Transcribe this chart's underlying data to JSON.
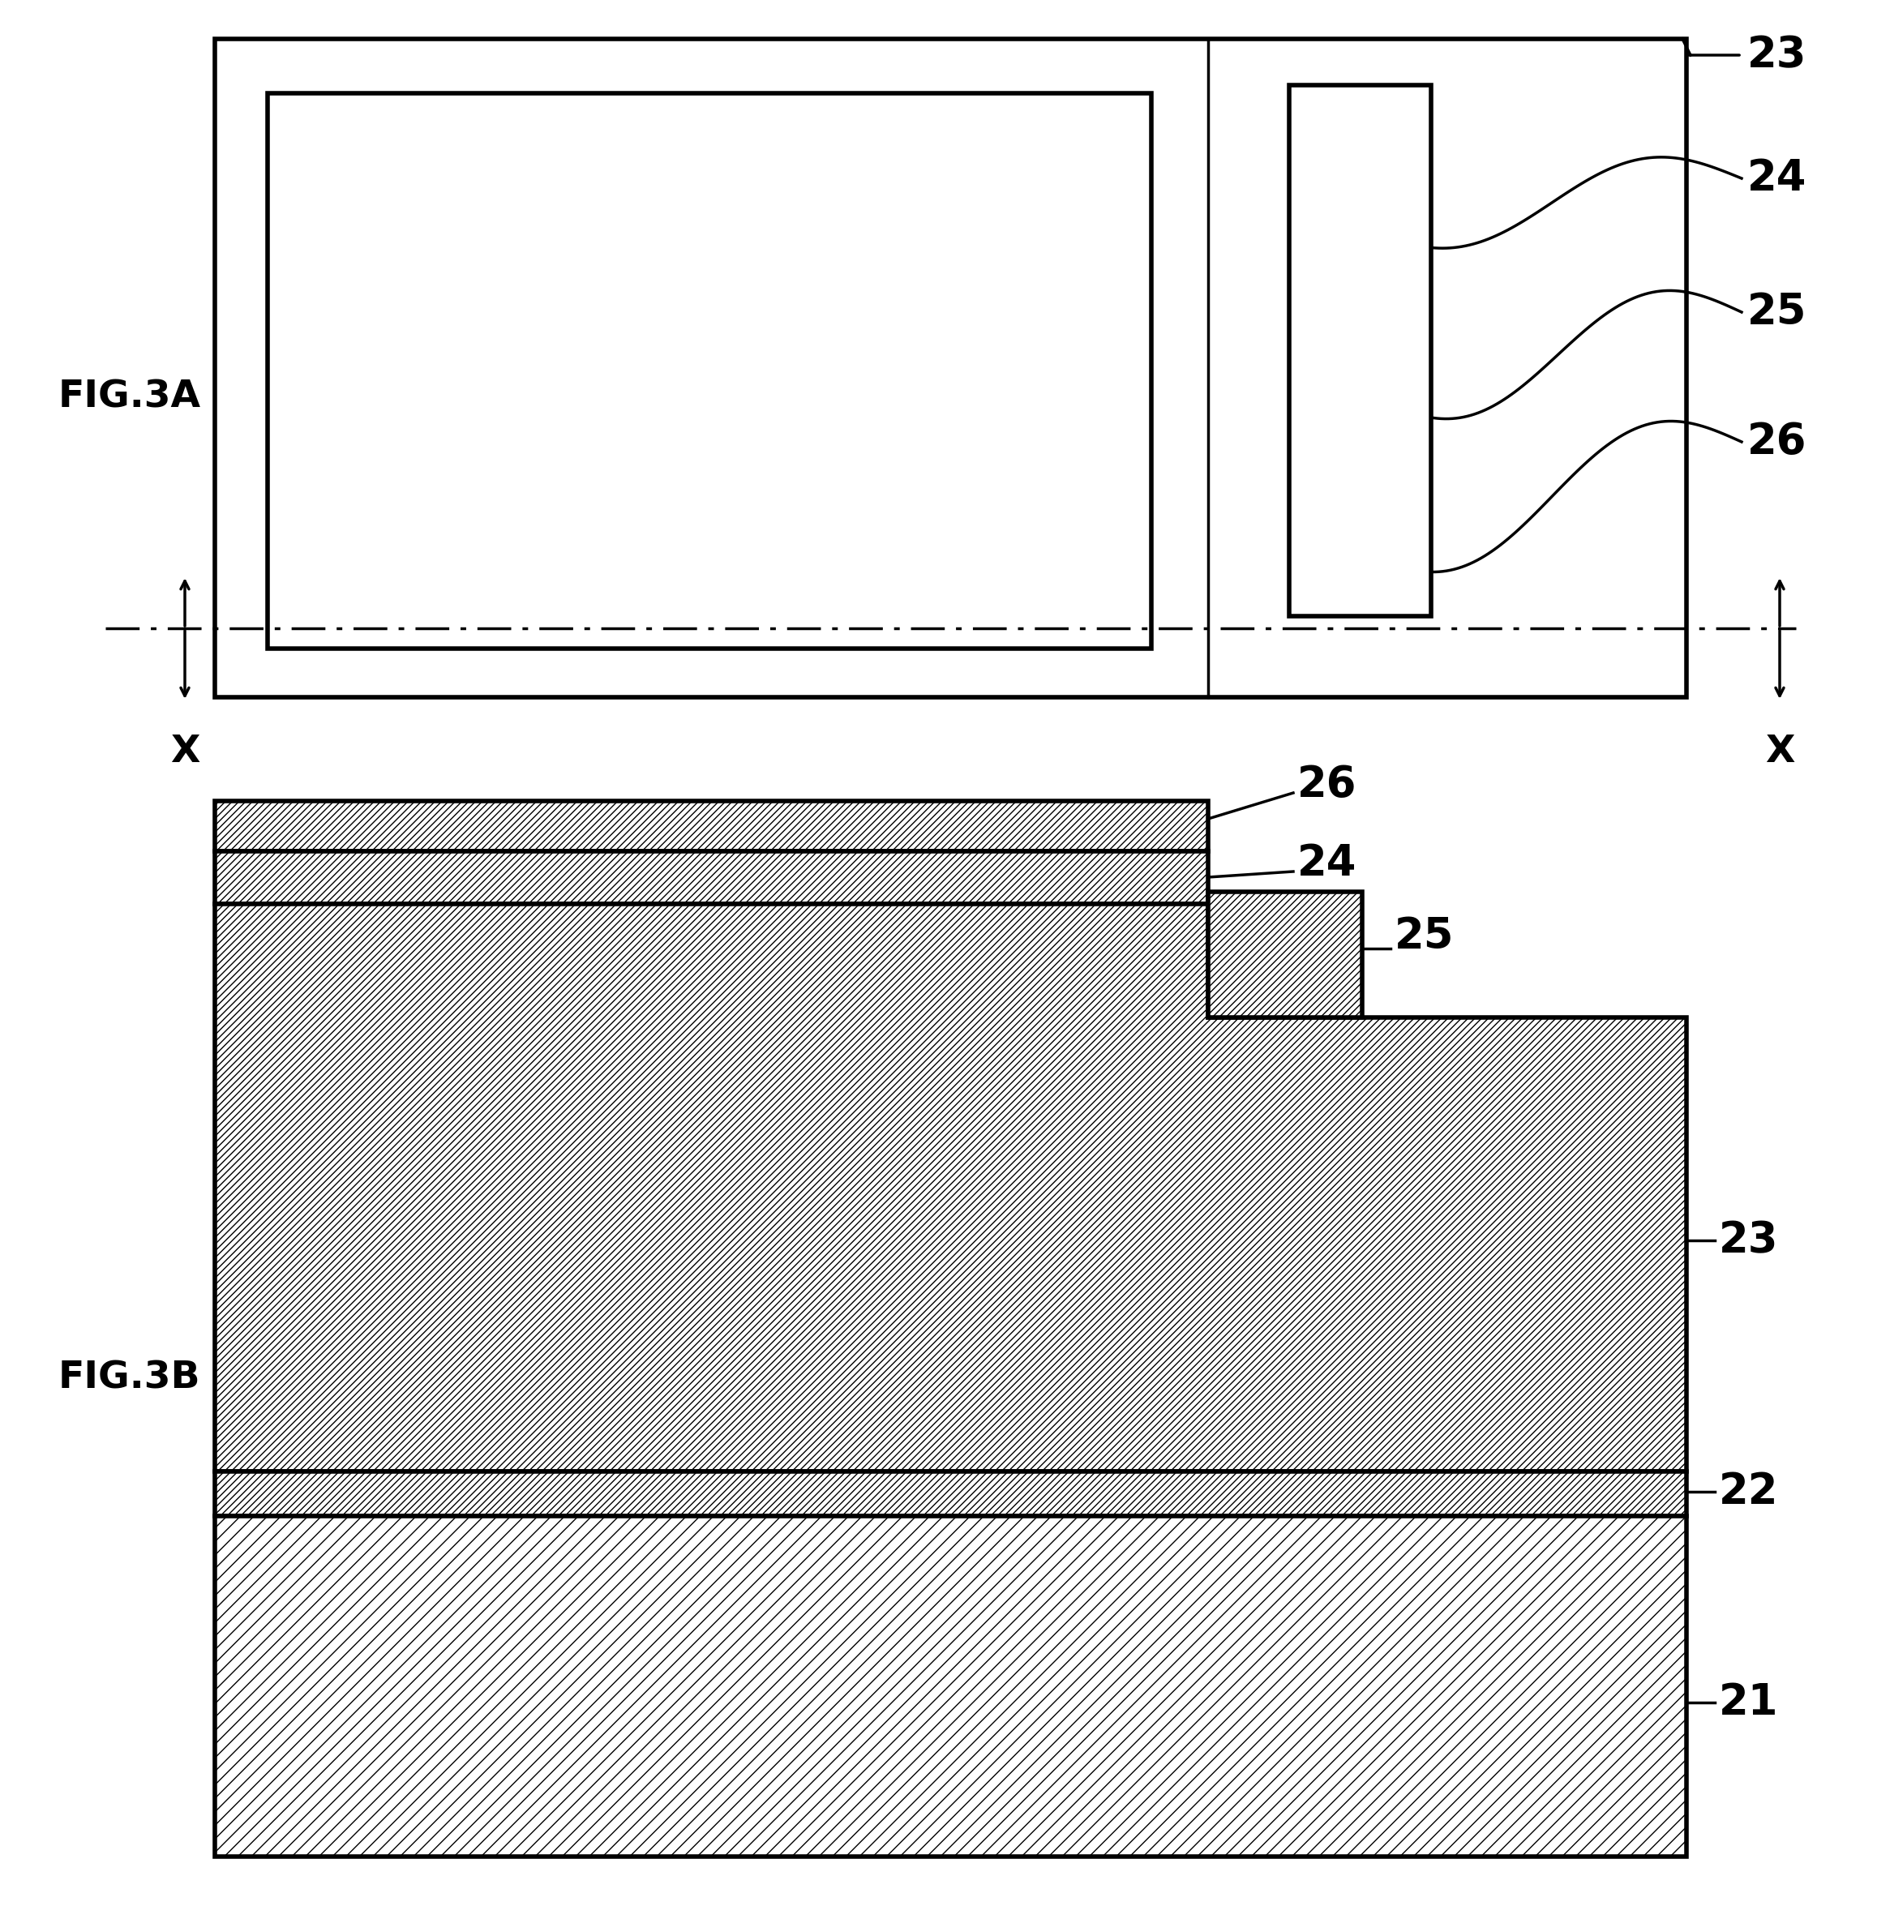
{
  "fig_width": 23.15,
  "fig_height": 23.51,
  "bg_color": "#ffffff",
  "line_color": "#000000",
  "label_fontsize": 34,
  "number_fontsize": 38,
  "fig3a_label": "FIG.3A",
  "fig3b_label": "FIG.3B",
  "x_label": "X",
  "linewidth": 2.5,
  "thick_linewidth": 4.0
}
